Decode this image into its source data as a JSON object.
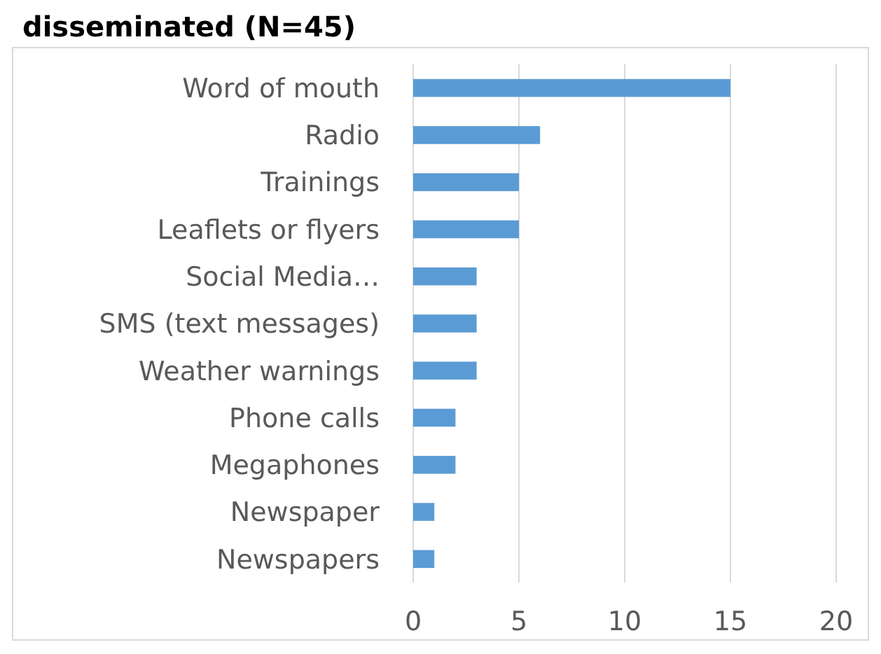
{
  "chart_data": {
    "type": "bar",
    "orientation": "horizontal",
    "title": "disseminated (N=45)",
    "categories": [
      "Word of mouth",
      "Radio",
      "Trainings",
      "Leaflets or flyers",
      "Social Media…",
      "SMS (text messages)",
      "Weather warnings",
      "Phone calls",
      "Megaphones",
      "Newspaper",
      "Newspapers"
    ],
    "values": [
      15,
      6,
      5,
      5,
      3,
      3,
      3,
      2,
      2,
      1,
      1
    ],
    "color": "#5b9bd5",
    "xlim": [
      0,
      20
    ],
    "xticks": [
      0,
      5,
      10,
      15,
      20
    ],
    "grid": "x"
  }
}
